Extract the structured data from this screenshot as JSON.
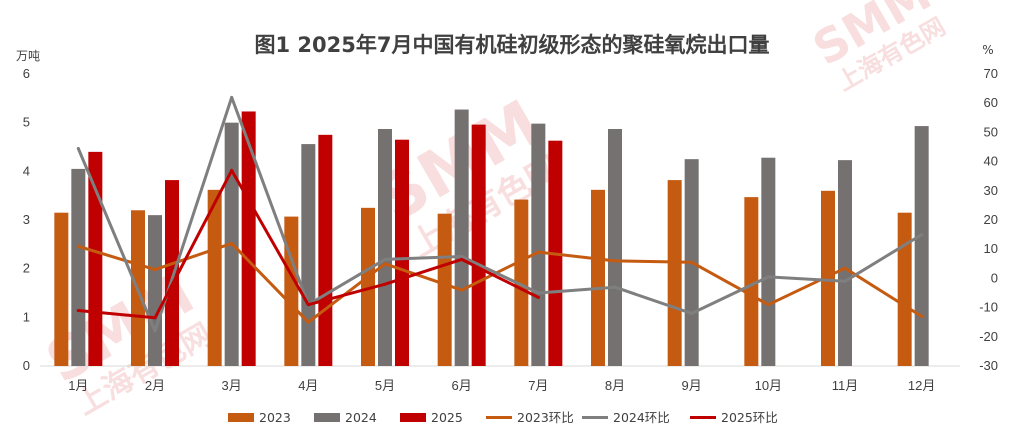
{
  "chart_data": {
    "type": "bar+line",
    "title": "图1 2025年7月中国有机硅初级形态的聚硅氧烷出口量",
    "y_left_unit": "万吨",
    "y_right_unit": "%",
    "y_left_lim": [
      0,
      6
    ],
    "y_left_ticks": [
      "0",
      "1",
      "2",
      "3",
      "4",
      "5",
      "6"
    ],
    "y_right_lim": [
      -30,
      70
    ],
    "y_right_ticks": [
      "-30",
      "-20",
      "-10",
      "0",
      "10",
      "20",
      "30",
      "40",
      "50",
      "60",
      "70"
    ],
    "categories": [
      "1月",
      "2月",
      "3月",
      "4月",
      "5月",
      "6月",
      "7月",
      "8月",
      "9月",
      "10月",
      "11月",
      "12月"
    ],
    "bar_series": [
      {
        "name": "2023",
        "color": "#c55a11",
        "values": [
          3.15,
          3.2,
          3.62,
          3.07,
          3.25,
          3.13,
          3.42,
          3.62,
          3.82,
          3.47,
          3.6,
          3.15
        ]
      },
      {
        "name": "2024",
        "color": "#757171",
        "values": [
          4.05,
          3.1,
          5.0,
          4.56,
          4.87,
          5.27,
          4.98,
          4.87,
          4.25,
          4.28,
          4.23,
          4.93
        ]
      },
      {
        "name": "2025",
        "color": "#c00000",
        "values": [
          4.4,
          3.82,
          5.23,
          4.75,
          4.65,
          4.96,
          4.63,
          null,
          null,
          null,
          null,
          null
        ]
      }
    ],
    "line_series": [
      {
        "name": "2023环比",
        "color": "#c55a11",
        "values": [
          11,
          3,
          12,
          -15,
          5,
          -4,
          9,
          6,
          5.5,
          -9,
          3.5,
          -13
        ]
      },
      {
        "name": "2024环比",
        "color": "#7f7f7f",
        "values": [
          44.5,
          -18,
          62,
          -9,
          6.5,
          7.5,
          -5,
          -3,
          -12,
          0.5,
          -1,
          15
        ]
      },
      {
        "name": "2025环比",
        "color": "#c00000",
        "values": [
          -11,
          -13.5,
          37,
          -9,
          -2,
          6.5,
          -6.5,
          null,
          null,
          null,
          null,
          null
        ]
      }
    ],
    "legend_position": "bottom",
    "grid": false
  },
  "watermark": {
    "brand": "SMM",
    "cn": "上海有色网"
  }
}
